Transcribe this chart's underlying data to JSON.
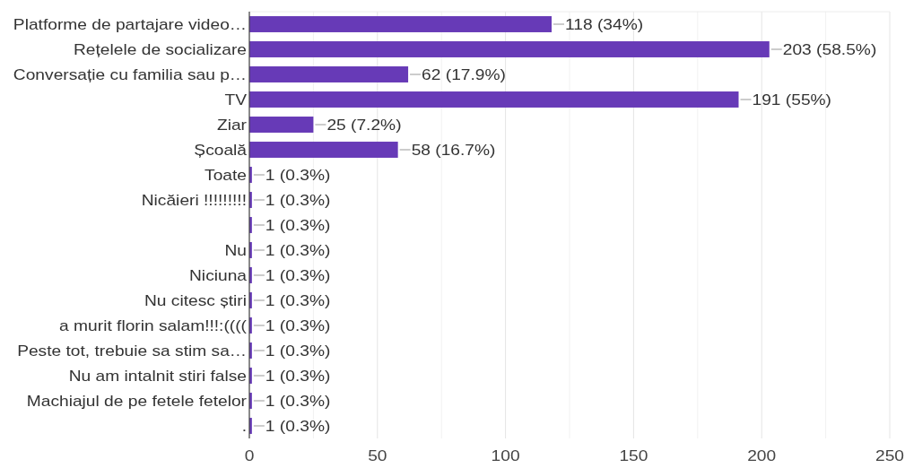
{
  "chart_data": {
    "type": "bar",
    "orientation": "horizontal",
    "categories": [
      "Platforme de partajare video…",
      "Rețelele de socializare",
      "Conversație cu familia sau p…",
      "TV",
      "Ziar",
      "Școală",
      "Toate",
      "Nicăieri !!!!!!!!!",
      null,
      "Nu",
      "Niciuna",
      "Nu citesc știri",
      "a murit florin salam!!!:((((",
      "Peste tot, trebuie sa stim sa…",
      "Nu am intalnit stiri false",
      "Machiajul de pe fetele fetelor",
      "."
    ],
    "values": [
      118,
      203,
      62,
      191,
      25,
      58,
      1,
      1,
      1,
      1,
      1,
      1,
      1,
      1,
      1,
      1,
      1
    ],
    "value_labels": [
      "118 (34%)",
      "203 (58.5%)",
      "62 (17.9%)",
      "191 (55%)",
      "25 (7.2%)",
      "58 (16.7%)",
      "1 (0.3%)",
      "1 (0.3%)",
      "1 (0.3%)",
      "1 (0.3%)",
      "1 (0.3%)",
      "1 (0.3%)",
      "1 (0.3%)",
      "1 (0.3%)",
      "1 (0.3%)",
      "1 (0.3%)",
      "1 (0.3%)"
    ],
    "color": "#673ab7",
    "xlim": [
      0,
      250
    ],
    "xticks": [
      0,
      {
        "value": 25,
        "label": null
      },
      50,
      {
        "value": 75,
        "label": null
      },
      100,
      {
        "value": 125,
        "label": null
      },
      150,
      {
        "value": 175,
        "label": null
      },
      200,
      {
        "value": 225,
        "label": null
      },
      250
    ],
    "grid": "x"
  }
}
